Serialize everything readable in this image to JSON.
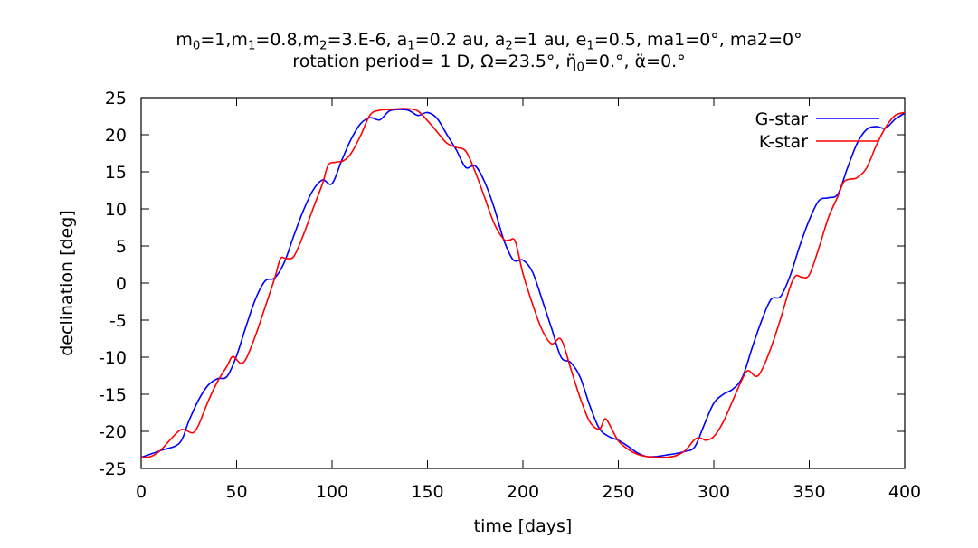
{
  "chart_data": {
    "type": "line",
    "title_line1_parts": [
      "m",
      "0",
      "=1,m",
      "1",
      "=0.8,m",
      "2",
      "=3.E-6, a",
      "1",
      "=0.2 au, a",
      "2",
      "=1 au, e",
      "1",
      "=0.5, ma1=0°, ma2=0°"
    ],
    "title_line2_parts": [
      "rotation period= 1 D, Ω=23.5°, η̈",
      "0",
      "=0.°, α̈=0.°"
    ],
    "xlabel": "time [days]",
    "ylabel": "declination [deg]",
    "xlim": [
      0,
      400
    ],
    "ylim": [
      -25,
      25
    ],
    "xticks": [
      0,
      50,
      100,
      150,
      200,
      250,
      300,
      350,
      400
    ],
    "yticks": [
      -25,
      -20,
      -15,
      -10,
      -5,
      0,
      5,
      10,
      15,
      20,
      25
    ],
    "grid": false,
    "legend_position": "top-right",
    "series": [
      {
        "name": "G-star",
        "color": "#0000ff",
        "x": [
          0,
          10,
          20,
          25,
          30,
          35,
          40,
          45,
          50,
          55,
          60,
          65,
          70,
          75,
          80,
          85,
          90,
          95,
          100,
          105,
          110,
          115,
          120,
          125,
          130,
          135,
          140,
          145,
          150,
          155,
          160,
          165,
          170,
          175,
          180,
          185,
          190,
          195,
          200,
          205,
          210,
          215,
          220,
          225,
          230,
          235,
          240,
          245,
          250,
          255,
          260,
          265,
          270,
          275,
          280,
          285,
          290,
          295,
          300,
          305,
          310,
          315,
          320,
          325,
          330,
          335,
          340,
          345,
          350,
          355,
          360,
          365,
          370,
          375,
          380,
          385,
          390,
          395,
          400
        ],
        "values": [
          -23.5,
          -22.6,
          -21.6,
          -18.6,
          -15.8,
          -13.8,
          -12.9,
          -12.6,
          -9.8,
          -5.8,
          -2.1,
          0.3,
          0.7,
          2.8,
          6.4,
          9.8,
          12.5,
          13.9,
          13.4,
          16.5,
          19.4,
          21.5,
          22.3,
          22.0,
          23.2,
          23.4,
          23.3,
          22.6,
          23.0,
          22.2,
          20.1,
          18.0,
          15.6,
          15.8,
          13.6,
          10.1,
          5.8,
          3.1,
          3.1,
          1.5,
          -2.2,
          -6.1,
          -10.0,
          -10.7,
          -12.7,
          -16.5,
          -19.6,
          -20.7,
          -21.2,
          -22.0,
          -22.9,
          -23.4,
          -23.4,
          -23.2,
          -23.0,
          -22.7,
          -22.1,
          -19.1,
          -16.2,
          -15.0,
          -14.3,
          -12.7,
          -8.8,
          -5.1,
          -2.2,
          -1.8,
          1.0,
          5.0,
          8.5,
          11.1,
          11.5,
          12.0,
          15.5,
          18.8,
          20.7,
          21.1,
          20.9,
          22.1,
          22.9
        ]
      },
      {
        "name": "K-star",
        "color": "#ff0000",
        "x": [
          0,
          5,
          10,
          15,
          20,
          23,
          27,
          30,
          35,
          40,
          45,
          48,
          52,
          55,
          60,
          65,
          70,
          73,
          76,
          80,
          85,
          90,
          95,
          98,
          102,
          106,
          110,
          115,
          120,
          125,
          130,
          135,
          140,
          145,
          150,
          155,
          160,
          165,
          170,
          175,
          180,
          185,
          190,
          193,
          196,
          200,
          205,
          210,
          215,
          220,
          225,
          230,
          235,
          240,
          243,
          246,
          250,
          255,
          260,
          265,
          270,
          275,
          280,
          285,
          290,
          293,
          296,
          300,
          305,
          310,
          315,
          318,
          322,
          325,
          330,
          335,
          340,
          343,
          346,
          350,
          355,
          360,
          365,
          368,
          371,
          375,
          380,
          385,
          390,
          395,
          400
        ],
        "values": [
          -23.5,
          -23.4,
          -22.6,
          -21.2,
          -19.9,
          -19.8,
          -20.2,
          -19.2,
          -16.0,
          -13.3,
          -11.2,
          -9.9,
          -10.8,
          -10.2,
          -7.0,
          -3.2,
          0.7,
          3.3,
          3.3,
          3.6,
          6.5,
          10.0,
          13.4,
          15.9,
          16.3,
          16.5,
          17.5,
          19.9,
          22.7,
          23.3,
          23.4,
          23.5,
          23.5,
          23.2,
          21.9,
          20.4,
          18.9,
          18.3,
          17.8,
          15.0,
          11.5,
          8.0,
          5.9,
          5.8,
          5.6,
          1.3,
          -2.8,
          -6.3,
          -8.2,
          -7.6,
          -11.5,
          -15.5,
          -18.7,
          -19.7,
          -18.3,
          -19.4,
          -21.3,
          -22.4,
          -23.1,
          -23.4,
          -23.5,
          -23.5,
          -23.3,
          -22.6,
          -21.1,
          -20.9,
          -21.2,
          -20.7,
          -18.7,
          -15.8,
          -12.9,
          -11.8,
          -12.6,
          -11.8,
          -8.7,
          -4.8,
          -0.5,
          1.0,
          0.8,
          1.1,
          4.7,
          8.8,
          11.7,
          13.6,
          14.0,
          14.2,
          15.5,
          18.5,
          21.0,
          22.6,
          23.0
        ]
      }
    ]
  }
}
